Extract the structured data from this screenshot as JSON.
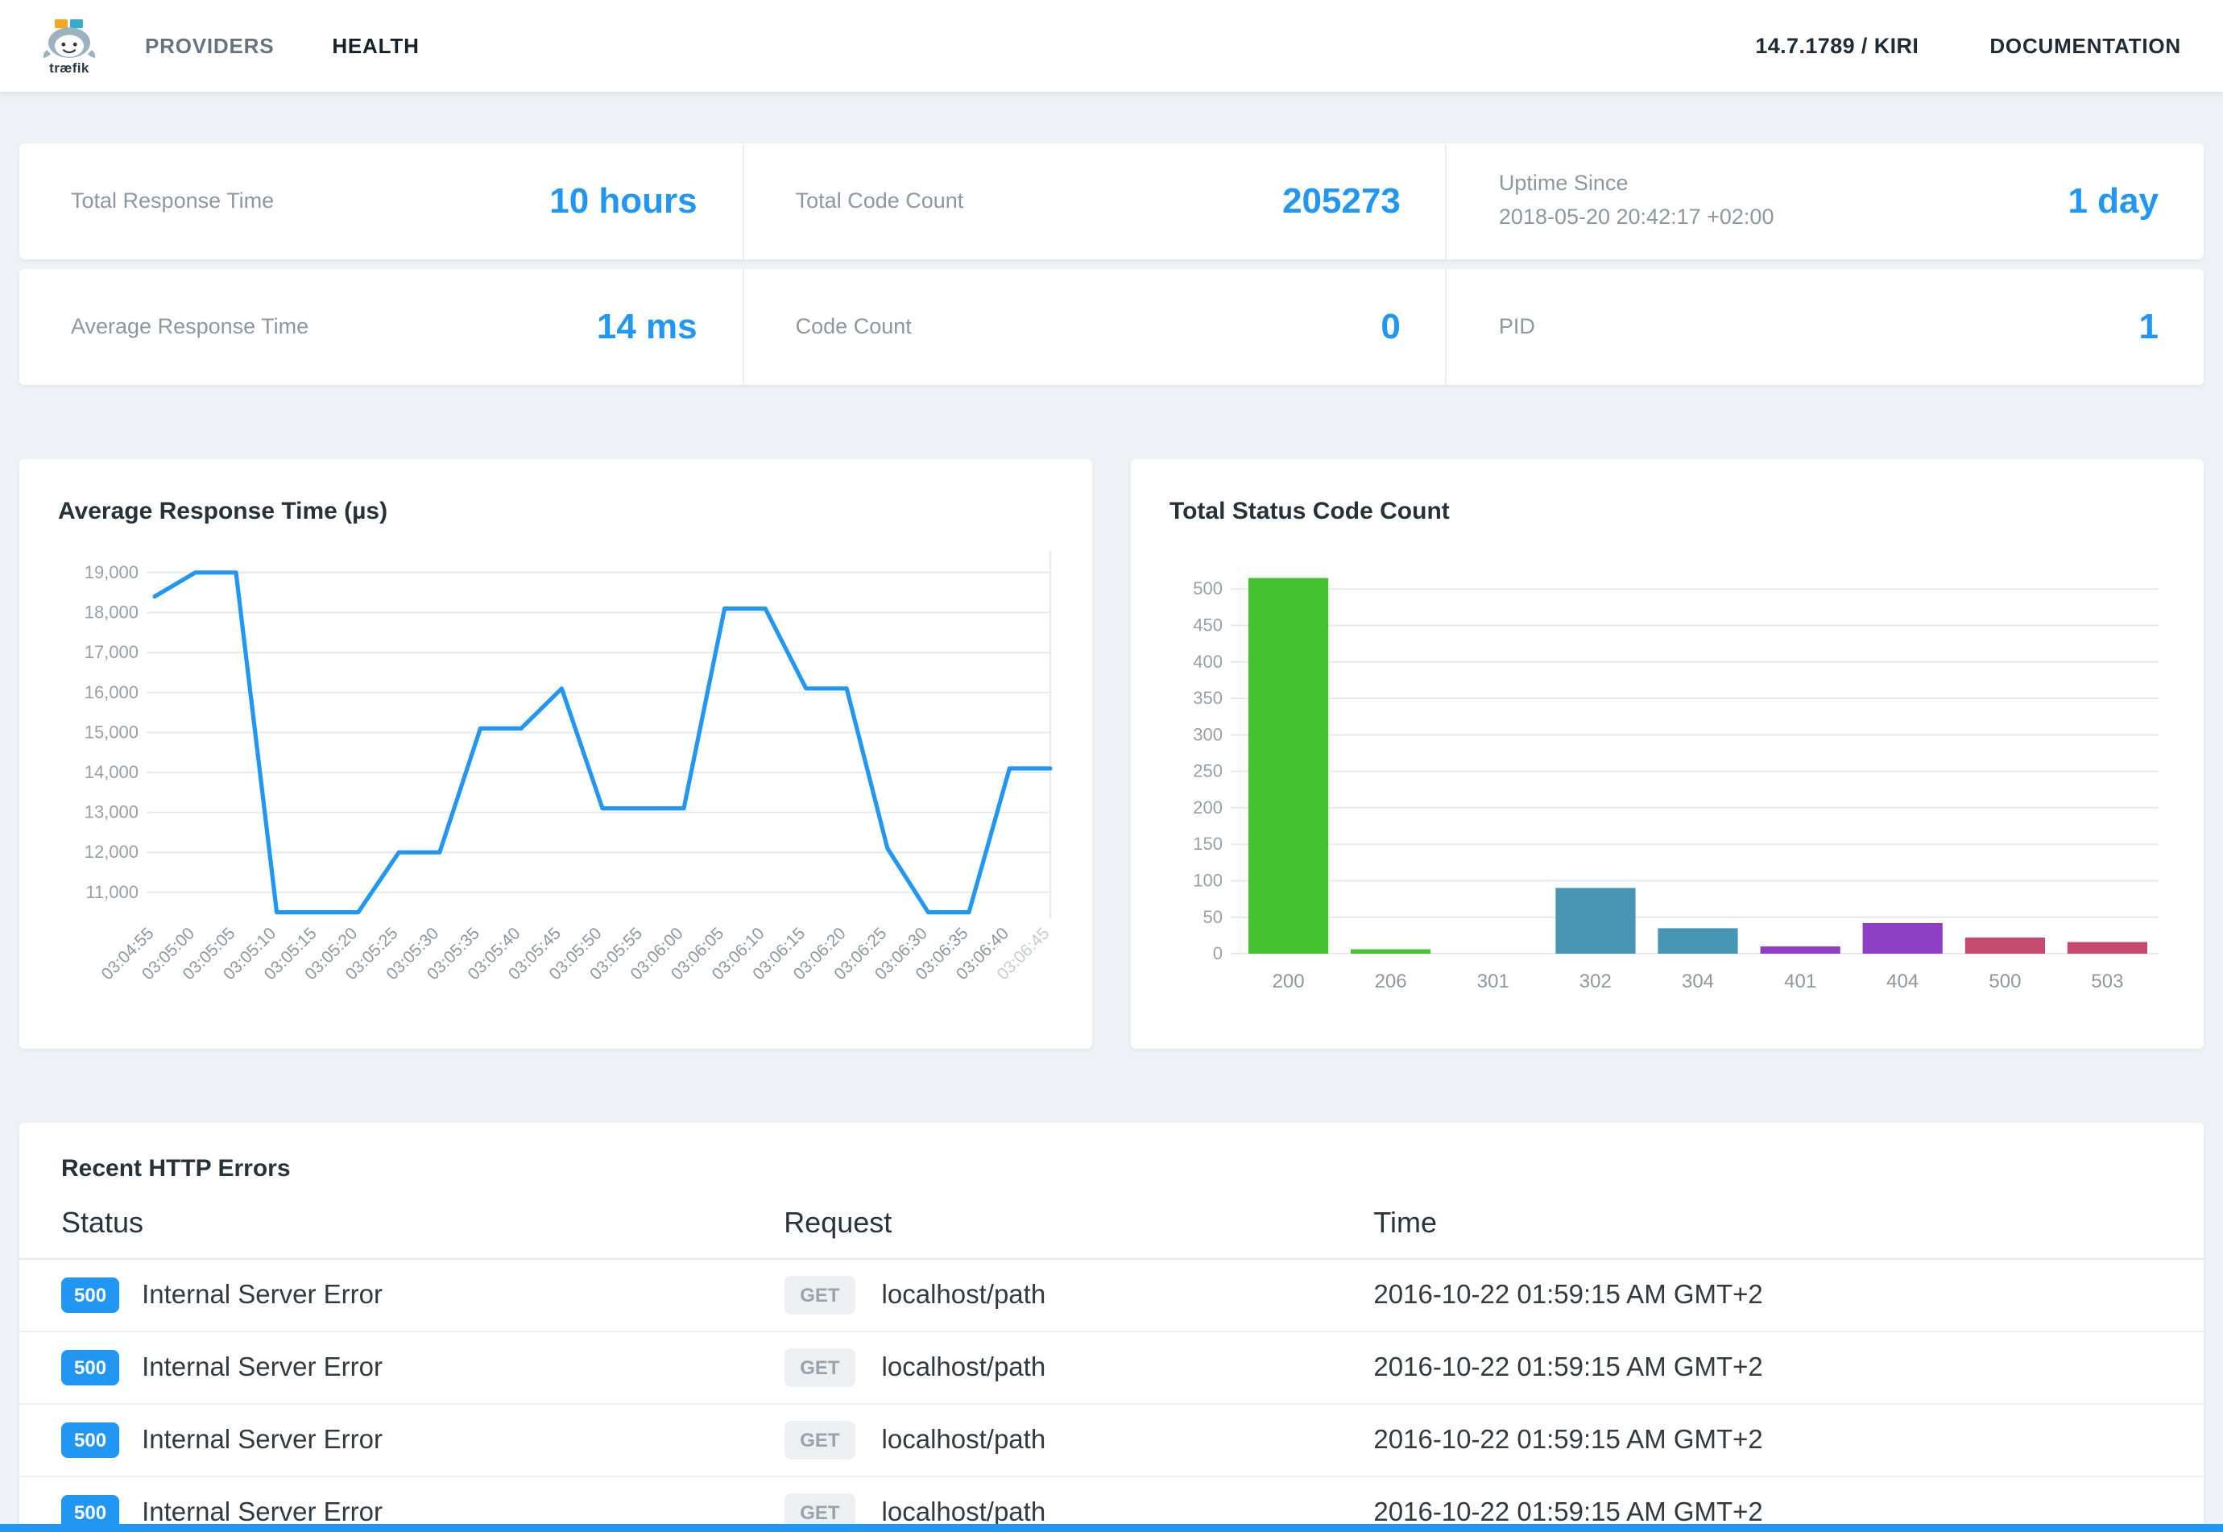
{
  "navbar": {
    "brand": "træfik",
    "items": [
      {
        "label": "PROVIDERS",
        "active": false
      },
      {
        "label": "HEALTH",
        "active": true
      }
    ],
    "version": "14.7.1789 / KIRI",
    "documentation": "DOCUMENTATION"
  },
  "accent_color": "#2196f3",
  "stats_rows": [
    [
      {
        "label": "Total Response Time",
        "value": "10 hours"
      },
      {
        "label": "Total Code Count",
        "value": "205273"
      },
      {
        "label": "Uptime Since",
        "sublabel": "2018-05-20 20:42:17 +02:00",
        "value": "1 day"
      }
    ],
    [
      {
        "label": "Average Response Time",
        "value": "14 ms"
      },
      {
        "label": "Code Count",
        "value": "0"
      },
      {
        "label": "PID",
        "value": "1"
      }
    ]
  ],
  "chart_data": [
    {
      "type": "line",
      "title": "Average Response Time (µs)",
      "x": [
        "03:04:55",
        "03:05:00",
        "03:05:05",
        "03:05:10",
        "03:05:15",
        "03:05:20",
        "03:05:25",
        "03:05:30",
        "03:05:35",
        "03:05:40",
        "03:05:45",
        "03:05:50",
        "03:05:55",
        "03:06:00",
        "03:06:05",
        "03:06:10",
        "03:06:15",
        "03:06:20",
        "03:06:25",
        "03:06:30",
        "03:06:35",
        "03:06:40",
        "03:06:45"
      ],
      "values": [
        18400,
        19000,
        19000,
        10500,
        10500,
        10500,
        12000,
        12000,
        15100,
        15100,
        16100,
        13100,
        13100,
        13100,
        18100,
        18100,
        16100,
        16100,
        12100,
        10500,
        10500,
        14100,
        14100
      ],
      "yticks": [
        11000,
        12000,
        13000,
        14000,
        15000,
        16000,
        17000,
        18000,
        19000
      ],
      "ylim": [
        10350,
        19300
      ],
      "color": "#2196f3",
      "grid": "horizontal",
      "x_label_rotation": -45,
      "legend": "none"
    },
    {
      "type": "bar",
      "title": "Total Status Code Count",
      "categories": [
        "200",
        "206",
        "301",
        "302",
        "304",
        "401",
        "404",
        "500",
        "503"
      ],
      "values": [
        515,
        6,
        0,
        90,
        35,
        10,
        42,
        22,
        16
      ],
      "colors": [
        "#46c32e",
        "#46c32e",
        "#46c32e",
        "#4695b5",
        "#4695b5",
        "#8f3fc4",
        "#8f3fc4",
        "#c64a6e",
        "#c64a6e"
      ],
      "yticks": [
        0,
        50,
        100,
        150,
        200,
        250,
        300,
        350,
        400,
        450,
        500
      ],
      "ylim": [
        0,
        530
      ],
      "grid": "horizontal",
      "legend": "none"
    }
  ],
  "errors_table": {
    "title": "Recent HTTP Errors",
    "columns": [
      "Status",
      "Request",
      "Time"
    ],
    "rows": [
      {
        "status_code": "500",
        "status_text": "Internal Server Error",
        "method": "GET",
        "path": "localhost/path",
        "time": "2016-10-22 01:59:15 AM GMT+2"
      },
      {
        "status_code": "500",
        "status_text": "Internal Server Error",
        "method": "GET",
        "path": "localhost/path",
        "time": "2016-10-22 01:59:15 AM GMT+2"
      },
      {
        "status_code": "500",
        "status_text": "Internal Server Error",
        "method": "GET",
        "path": "localhost/path",
        "time": "2016-10-22 01:59:15 AM GMT+2"
      },
      {
        "status_code": "500",
        "status_text": "Internal Server Error",
        "method": "GET",
        "path": "localhost/path",
        "time": "2016-10-22 01:59:15 AM GMT+2"
      }
    ]
  }
}
